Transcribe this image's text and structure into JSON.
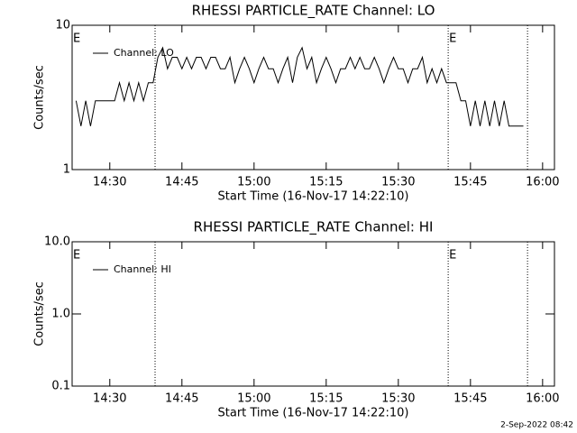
{
  "chart_data": [
    {
      "type": "line",
      "title": "RHESSI PARTICLE_RATE Channel: LO",
      "xlabel": "Start Time (16-Nov-17 14:22:10)",
      "ylabel": "Counts/sec",
      "ylog": true,
      "ylim": [
        1,
        10
      ],
      "yticks": [
        1,
        10
      ],
      "xlim": [
        "14:22:10",
        "16:02:28"
      ],
      "xticks": [
        "14:30",
        "14:45",
        "15:00",
        "15:15",
        "15:30",
        "15:45",
        "16:00"
      ],
      "markers": [
        "14:39:25",
        "15:40:22",
        "15:56:52"
      ],
      "annotations": [
        {
          "text": "E",
          "x": "14:22:10"
        },
        {
          "text": "E",
          "x": "15:40:22"
        }
      ],
      "legend": "upper left",
      "x": [
        "14:23",
        "14:24",
        "14:25",
        "14:26",
        "14:27",
        "14:28",
        "14:29",
        "14:30",
        "14:31",
        "14:32",
        "14:33",
        "14:34",
        "14:35",
        "14:36",
        "14:37",
        "14:38",
        "14:39",
        "14:40",
        "14:41",
        "14:42",
        "14:43",
        "14:44",
        "14:45",
        "14:46",
        "14:47",
        "14:48",
        "14:49",
        "14:50",
        "14:51",
        "14:52",
        "14:53",
        "14:54",
        "14:55",
        "14:56",
        "14:57",
        "14:58",
        "14:59",
        "15:00",
        "15:01",
        "15:02",
        "15:03",
        "15:04",
        "15:05",
        "15:06",
        "15:07",
        "15:08",
        "15:09",
        "15:10",
        "15:11",
        "15:12",
        "15:13",
        "15:14",
        "15:15",
        "15:16",
        "15:17",
        "15:18",
        "15:19",
        "15:20",
        "15:21",
        "15:22",
        "15:23",
        "15:24",
        "15:25",
        "15:26",
        "15:27",
        "15:28",
        "15:29",
        "15:30",
        "15:31",
        "15:32",
        "15:33",
        "15:34",
        "15:35",
        "15:36",
        "15:37",
        "15:38",
        "15:39",
        "15:40",
        "15:41",
        "15:42",
        "15:43",
        "15:44",
        "15:45",
        "15:46",
        "15:47",
        "15:48",
        "15:49",
        "15:50",
        "15:51",
        "15:52",
        "15:53",
        "15:54",
        "15:55",
        "15:56"
      ],
      "series": [
        {
          "name": "Channel: LO",
          "color": "#000000",
          "values": [
            3,
            2,
            3,
            2,
            3,
            3,
            3,
            3,
            3,
            4,
            3,
            4,
            3,
            4,
            3,
            4,
            4,
            6,
            7,
            5,
            6,
            6,
            5,
            6,
            5,
            6,
            6,
            5,
            6,
            6,
            5,
            5,
            6,
            4,
            5,
            6,
            5,
            4,
            5,
            6,
            5,
            5,
            4,
            5,
            6,
            4,
            6,
            7,
            5,
            6,
            4,
            5,
            6,
            5,
            4,
            5,
            5,
            6,
            5,
            6,
            5,
            5,
            6,
            5,
            4,
            5,
            6,
            5,
            5,
            4,
            5,
            5,
            6,
            4,
            5,
            4,
            5,
            4,
            4,
            4,
            3,
            3,
            2,
            3,
            2,
            3,
            2,
            3,
            2,
            3,
            2,
            2,
            2,
            2
          ]
        }
      ]
    },
    {
      "type": "line",
      "title": "RHESSI PARTICLE_RATE Channel: HI",
      "xlabel": "Start Time (16-Nov-17 14:22:10)",
      "ylabel": "Counts/sec",
      "ylog": true,
      "ylim": [
        0.1,
        10
      ],
      "yticks": [
        {
          "value": 0.1,
          "label": "0.1"
        },
        {
          "value": 1,
          "label": "1.0"
        },
        {
          "value": 10,
          "label": "10.0"
        }
      ],
      "xlim": [
        "14:22:10",
        "16:02:28"
      ],
      "xticks": [
        "14:30",
        "14:45",
        "15:00",
        "15:15",
        "15:30",
        "15:45",
        "16:00"
      ],
      "markers": [
        "14:39:25",
        "15:40:22",
        "15:56:52"
      ],
      "annotations": [
        {
          "text": "E",
          "x": "14:22:10"
        },
        {
          "text": "E",
          "x": "15:40:22"
        }
      ],
      "legend": "upper left",
      "x": [],
      "series": [
        {
          "name": "Channel: HI",
          "color": "#000000",
          "values": []
        }
      ]
    }
  ],
  "footer": "2-Sep-2022 08:42"
}
